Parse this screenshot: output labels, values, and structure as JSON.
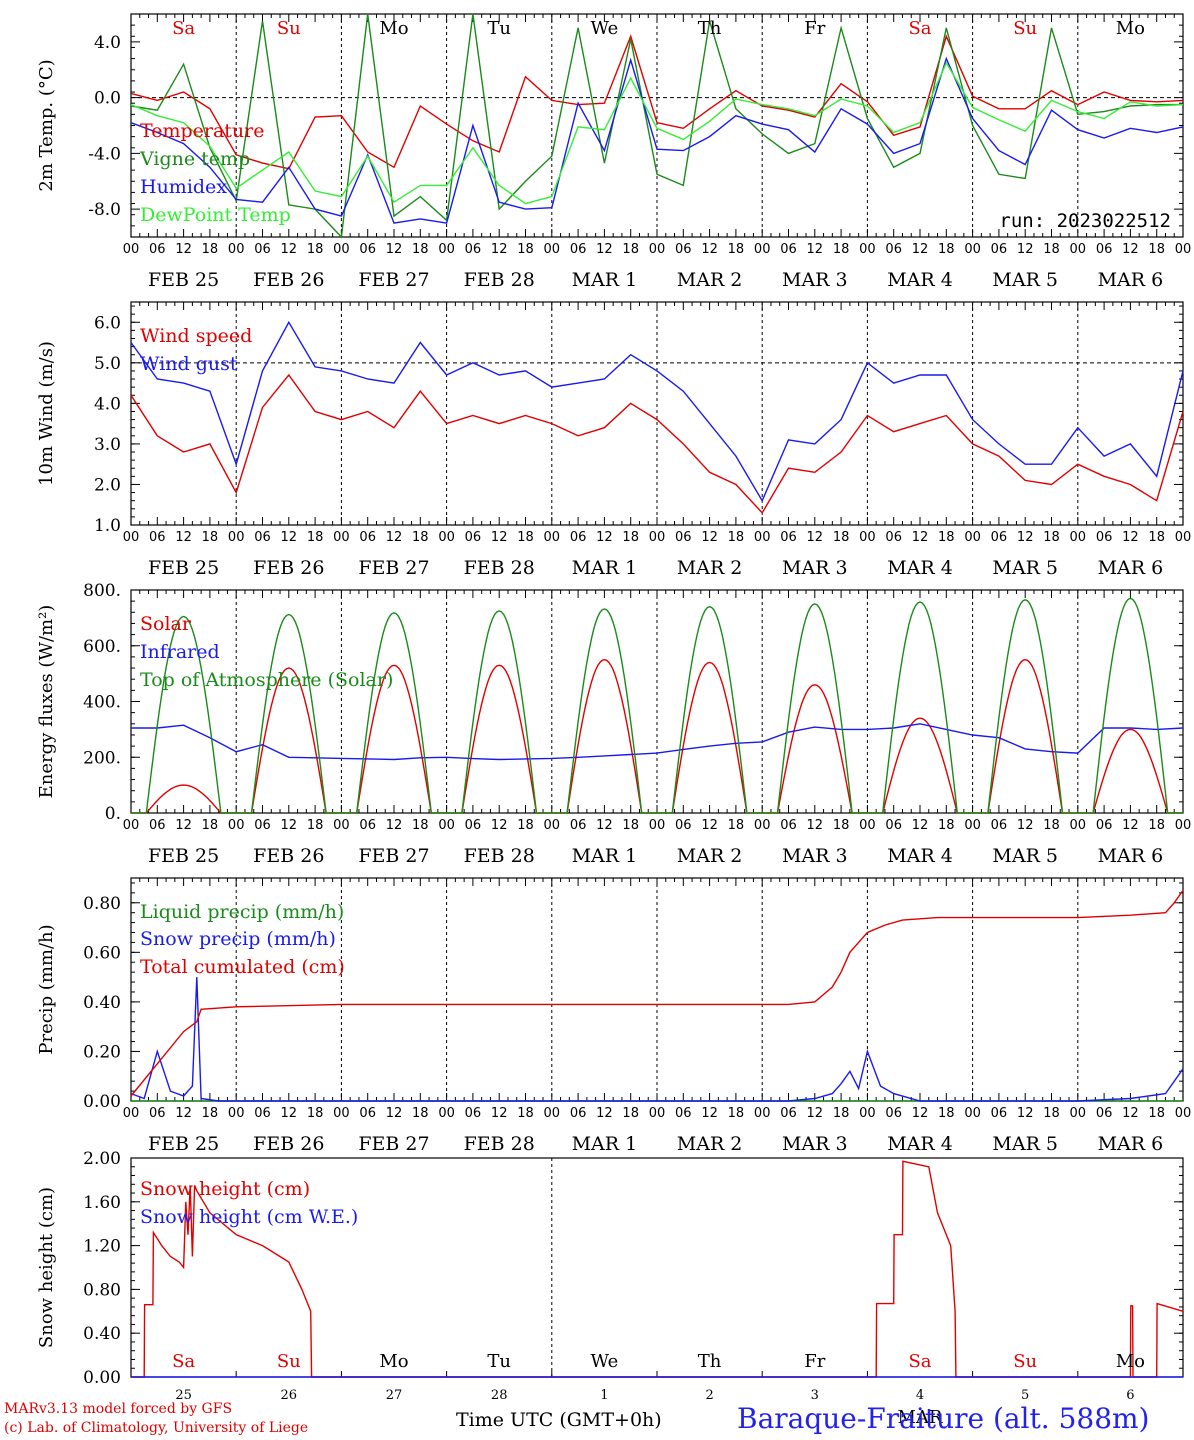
{
  "run_label": "run: 2023022512",
  "x_axis_title": "Time UTC (GMT+0h)",
  "station": "Baraque-Fraiture (alt. 588m)",
  "credits": [
    "MARv3.13 model forced by GFS",
    "(c) Lab. of Climatology, University of Liege"
  ],
  "hour_labels": [
    "00",
    "06",
    "12",
    "18"
  ],
  "date_labels": [
    "FEB 25",
    "FEB 26",
    "FEB 27",
    "FEB 28",
    "MAR  1",
    "MAR  2",
    "MAR  3",
    "MAR  4",
    "MAR  5",
    "MAR  6"
  ],
  "day_names": [
    "Sa",
    "Su",
    "Mo",
    "Tu",
    "We",
    "Th",
    "Fr",
    "Sa",
    "Su",
    "Mo"
  ],
  "day_name_colors": [
    "#e00000",
    "#e00000",
    "#000000",
    "#000000",
    "#000000",
    "#000000",
    "#000000",
    "#e00000",
    "#e00000",
    "#000000"
  ],
  "day_numbers": [
    "25",
    "26",
    "27",
    "28",
    "1",
    "2",
    "3",
    "4",
    "5",
    "6"
  ],
  "month_label": "MAR",
  "colors": {
    "red": "#e00000",
    "green": "#1a8a1a",
    "blue": "#1a1aee",
    "lightgreen": "#33ee33"
  },
  "chart_data": [
    {
      "type": "line",
      "ylabel": "2m Temp. (°C)",
      "ylim": [
        -10,
        6
      ],
      "yticks": [
        "4.0",
        "0.0",
        "-4.0",
        "-8.0"
      ],
      "ytick_values": [
        4,
        0,
        -4,
        -8
      ],
      "ref_line": 0,
      "x_unit": "hours since Feb 25 00 UTC",
      "series": [
        {
          "name": "Temperature",
          "color": "red",
          "x": [
            0,
            6,
            12,
            18,
            24,
            30,
            36,
            42,
            48,
            54,
            60,
            66,
            72,
            78,
            84,
            90,
            96,
            102,
            108,
            114,
            120,
            126,
            132,
            138,
            144,
            150,
            156,
            162,
            168,
            174,
            180,
            186,
            192,
            198,
            204,
            210,
            216,
            222,
            228,
            234,
            240
          ],
          "values": [
            0.3,
            -0.2,
            0.4,
            -0.8,
            -4.1,
            -4.7,
            -5.1,
            -1.4,
            -1.3,
            -3.9,
            -5.0,
            -0.6,
            -1.9,
            -3.1,
            -3.9,
            1.5,
            -0.2,
            -0.5,
            -0.4,
            4.4,
            -1.8,
            -2.2,
            -0.8,
            0.5,
            -0.6,
            -0.9,
            -1.4,
            1.0,
            -0.3,
            -2.7,
            -2.1,
            4.4,
            0.1,
            -0.8,
            -0.8,
            0.5,
            -0.5,
            0.4,
            -0.2,
            -0.3,
            -0.2
          ]
        },
        {
          "name": "Vigne temp",
          "color": "green",
          "x": [
            0,
            6,
            12,
            18,
            24,
            30,
            36,
            42,
            48,
            54,
            60,
            66,
            72,
            78,
            84,
            90,
            96,
            102,
            108,
            114,
            120,
            126,
            132,
            138,
            144,
            150,
            156,
            162,
            168,
            174,
            180,
            186,
            192,
            198,
            204,
            210,
            216,
            222,
            228,
            234,
            240
          ],
          "values": [
            -0.6,
            -0.9,
            2.4,
            -3.6,
            -7.4,
            5.5,
            -7.7,
            -8.0,
            -10.0,
            6.2,
            -8.5,
            -7.1,
            -8.8,
            6.5,
            -8.0,
            -6.0,
            -4.2,
            5.0,
            -4.7,
            4.2,
            -5.5,
            -6.3,
            5.5,
            -0.8,
            -2.6,
            -4.0,
            -3.3,
            5.0,
            -1.5,
            -5.0,
            -4.0,
            5.0,
            -2.0,
            -5.5,
            -5.8,
            5.0,
            -1.2,
            -1.0,
            -0.6,
            -0.5,
            -0.5
          ]
        },
        {
          "name": "Humidex",
          "color": "blue",
          "x": [
            0,
            6,
            12,
            18,
            24,
            30,
            36,
            42,
            48,
            54,
            60,
            66,
            72,
            78,
            84,
            90,
            96,
            102,
            108,
            114,
            120,
            126,
            132,
            138,
            144,
            150,
            156,
            162,
            168,
            174,
            180,
            186,
            192,
            198,
            204,
            210,
            216,
            222,
            228,
            234,
            240
          ],
          "values": [
            -1.8,
            -2.5,
            -3.3,
            -5.0,
            -7.3,
            -7.5,
            -5.0,
            -8.0,
            -8.5,
            -4.1,
            -9.0,
            -8.7,
            -9.0,
            -2.0,
            -7.5,
            -8.0,
            -7.9,
            -0.4,
            -3.8,
            2.7,
            -3.7,
            -3.8,
            -2.8,
            -1.3,
            -1.9,
            -2.3,
            -3.9,
            -0.8,
            -1.9,
            -4.0,
            -3.3,
            2.8,
            -1.5,
            -3.8,
            -4.8,
            -0.9,
            -2.3,
            -2.9,
            -2.2,
            -2.5,
            -2.1
          ]
        },
        {
          "name": "DewPoint Temp",
          "color": "lightgreen",
          "x": [
            0,
            6,
            12,
            18,
            24,
            30,
            36,
            42,
            48,
            54,
            60,
            66,
            72,
            78,
            84,
            90,
            96,
            102,
            108,
            114,
            120,
            126,
            132,
            138,
            144,
            150,
            156,
            162,
            168,
            174,
            180,
            186,
            192,
            198,
            204,
            210,
            216,
            222,
            228,
            234,
            240
          ],
          "values": [
            -0.5,
            -1.3,
            -1.8,
            -3.5,
            -6.5,
            -5.2,
            -3.9,
            -6.7,
            -7.1,
            -4.2,
            -7.5,
            -6.3,
            -6.3,
            -3.6,
            -6.3,
            -7.6,
            -7.1,
            -2.1,
            -2.3,
            1.4,
            -2.2,
            -3.0,
            -1.7,
            -0.1,
            -0.5,
            -0.8,
            -1.3,
            -0.1,
            -0.6,
            -2.5,
            -1.8,
            2.5,
            -0.7,
            -1.6,
            -2.4,
            -0.2,
            -1.0,
            -1.5,
            -0.3,
            -0.6,
            -0.5
          ]
        }
      ],
      "legend": [
        "Temperature",
        "Vigne temp",
        "Humidex",
        "DewPoint Temp"
      ]
    },
    {
      "type": "line",
      "ylabel": "10m Wind (m/s)",
      "ylim": [
        1.0,
        6.5
      ],
      "yticks": [
        "6.0",
        "5.0",
        "4.0",
        "3.0",
        "2.0",
        "1.0"
      ],
      "ytick_values": [
        6,
        5,
        4,
        3,
        2,
        1
      ],
      "ref_line": 5,
      "series": [
        {
          "name": "Wind speed",
          "color": "red",
          "x": [
            0,
            6,
            12,
            18,
            24,
            30,
            36,
            42,
            48,
            54,
            60,
            66,
            72,
            78,
            84,
            90,
            96,
            102,
            108,
            114,
            120,
            126,
            132,
            138,
            144,
            150,
            156,
            162,
            168,
            174,
            180,
            186,
            192,
            198,
            204,
            210,
            216,
            222,
            228,
            234,
            240
          ],
          "values": [
            4.2,
            3.2,
            2.8,
            3.0,
            1.8,
            3.9,
            4.7,
            3.8,
            3.6,
            3.8,
            3.4,
            4.3,
            3.5,
            3.7,
            3.5,
            3.7,
            3.5,
            3.2,
            3.4,
            4.0,
            3.6,
            3.0,
            2.3,
            2.0,
            1.3,
            2.4,
            2.3,
            2.8,
            3.7,
            3.3,
            3.5,
            3.7,
            3.0,
            2.7,
            2.1,
            2.0,
            2.5,
            2.2,
            2.0,
            1.6,
            3.8
          ]
        },
        {
          "name": "Wind gust",
          "color": "blue",
          "x": [
            0,
            6,
            12,
            18,
            24,
            30,
            36,
            42,
            48,
            54,
            60,
            66,
            72,
            78,
            84,
            90,
            96,
            102,
            108,
            114,
            120,
            126,
            132,
            138,
            144,
            150,
            156,
            162,
            168,
            174,
            180,
            186,
            192,
            198,
            204,
            210,
            216,
            222,
            228,
            234,
            240
          ],
          "values": [
            5.5,
            4.6,
            4.5,
            4.3,
            2.5,
            4.8,
            6.0,
            4.9,
            4.8,
            4.6,
            4.5,
            5.5,
            4.7,
            5.0,
            4.7,
            4.8,
            4.4,
            4.5,
            4.6,
            5.2,
            4.8,
            4.3,
            3.5,
            2.7,
            1.6,
            3.1,
            3.0,
            3.6,
            5.0,
            4.5,
            4.7,
            4.7,
            3.6,
            3.0,
            2.5,
            2.5,
            3.4,
            2.7,
            3.0,
            2.2,
            4.8
          ]
        }
      ],
      "legend": [
        "Wind speed",
        "Wind gust"
      ]
    },
    {
      "type": "line",
      "ylabel": "Energy fluxes (W/m²)",
      "ylim": [
        0,
        800
      ],
      "yticks": [
        "800.",
        "600.",
        "400.",
        "200.",
        "0."
      ],
      "ytick_values": [
        800,
        600,
        400,
        200,
        0
      ],
      "series": [
        {
          "name": "Solar",
          "color": "red",
          "peaks": [
            100,
            520,
            530,
            530,
            550,
            540,
            460,
            340,
            550,
            300
          ],
          "peak_hour": 12
        },
        {
          "name": "Infrared",
          "color": "blue",
          "x": [
            0,
            6,
            12,
            18,
            24,
            30,
            36,
            42,
            48,
            54,
            60,
            66,
            72,
            78,
            84,
            90,
            96,
            102,
            108,
            114,
            120,
            126,
            132,
            138,
            144,
            150,
            156,
            162,
            168,
            174,
            180,
            186,
            192,
            198,
            204,
            210,
            216,
            222,
            228,
            234,
            240
          ],
          "values": [
            305,
            305,
            315,
            270,
            220,
            245,
            200,
            198,
            196,
            194,
            192,
            198,
            200,
            195,
            192,
            194,
            196,
            200,
            205,
            210,
            215,
            228,
            240,
            250,
            255,
            290,
            308,
            300,
            300,
            305,
            320,
            300,
            280,
            270,
            230,
            220,
            215,
            305,
            305,
            300,
            305
          ]
        },
        {
          "name": "Top of Atmosphere (Solar)",
          "color": "green",
          "peaks": [
            705,
            712,
            718,
            725,
            732,
            740,
            750,
            757,
            765,
            770
          ],
          "peak_hour": 12
        }
      ],
      "legend": [
        "Solar",
        "Infrared",
        "Top of Atmosphere (Solar)"
      ]
    },
    {
      "type": "line",
      "ylabel": "Precip (mm/h)",
      "ylim": [
        0,
        0.9
      ],
      "yticks": [
        "0.80",
        "0.60",
        "0.40",
        "0.20",
        "0.00"
      ],
      "ytick_values": [
        0.8,
        0.6,
        0.4,
        0.2,
        0
      ],
      "series": [
        {
          "name": "Liquid precip (mm/h)",
          "color": "green",
          "x": [
            0,
            240
          ],
          "values": [
            0,
            0
          ]
        },
        {
          "name": "Snow precip (mm/h)",
          "color": "blue",
          "x": [
            0,
            3,
            6,
            9,
            12,
            14,
            15,
            16,
            20,
            24,
            48,
            120,
            144,
            150,
            156,
            160,
            162,
            164,
            166,
            168,
            171,
            174,
            180,
            186,
            216,
            228,
            236,
            240
          ],
          "values": [
            0.03,
            0.01,
            0.2,
            0.04,
            0.02,
            0.06,
            0.5,
            0.01,
            0,
            0,
            0,
            0,
            0,
            0,
            0.01,
            0.03,
            0.07,
            0.12,
            0.05,
            0.2,
            0.06,
            0.03,
            0,
            0,
            0,
            0.01,
            0.03,
            0.13
          ]
        },
        {
          "name": "Total cumulated (cm)",
          "color": "red",
          "x": [
            0,
            6,
            12,
            15,
            16,
            24,
            48,
            96,
            120,
            144,
            150,
            156,
            160,
            162,
            164,
            166,
            168,
            172,
            176,
            184,
            192,
            216,
            228,
            236,
            238,
            240
          ],
          "values": [
            0.02,
            0.15,
            0.28,
            0.32,
            0.37,
            0.38,
            0.39,
            0.39,
            0.39,
            0.39,
            0.39,
            0.4,
            0.46,
            0.52,
            0.6,
            0.64,
            0.68,
            0.71,
            0.73,
            0.74,
            0.74,
            0.74,
            0.75,
            0.76,
            0.8,
            0.85
          ]
        }
      ],
      "legend": [
        "Liquid precip (mm/h)",
        "Snow precip (mm/h)",
        "Total cumulated (cm)"
      ]
    },
    {
      "type": "line",
      "ylabel": "Snow height (cm)",
      "ylim": [
        0,
        2.0
      ],
      "yticks": [
        "2.00",
        "1.60",
        "1.20",
        "0.80",
        "0.40",
        "0.00"
      ],
      "ytick_values": [
        2.0,
        1.6,
        1.2,
        0.8,
        0.4,
        0
      ],
      "series": [
        {
          "name": "Snow height (cm)",
          "color": "red",
          "x": [
            0,
            3,
            3.1,
            5,
            5.1,
            7,
            9,
            11,
            12,
            12.5,
            13,
            13.5,
            14,
            14.5,
            15,
            18,
            24,
            30,
            36,
            39,
            41,
            41.2,
            170,
            170.1,
            174,
            174.1,
            176,
            176.1,
            182,
            184,
            187,
            188,
            188.2,
            228,
            228.1,
            228.5,
            228.6,
            234,
            234.1,
            240
          ],
          "values": [
            0,
            0,
            0.66,
            0.66,
            1.32,
            1.2,
            1.1,
            1.05,
            1.0,
            1.6,
            1.3,
            1.75,
            1.1,
            1.75,
            1.7,
            1.5,
            1.3,
            1.2,
            1.05,
            0.8,
            0.6,
            0,
            0,
            0.67,
            0.67,
            1.3,
            1.3,
            1.97,
            1.92,
            1.5,
            1.2,
            0.6,
            0,
            0,
            0.65,
            0.65,
            0,
            0,
            0.67,
            0.6
          ]
        },
        {
          "name": "Snow height (cm W.E.)",
          "color": "blue",
          "x": [
            0,
            240
          ],
          "values": [
            0,
            0
          ]
        }
      ],
      "legend": [
        "Snow height (cm)",
        "Snow height (cm W.E.)"
      ]
    }
  ]
}
